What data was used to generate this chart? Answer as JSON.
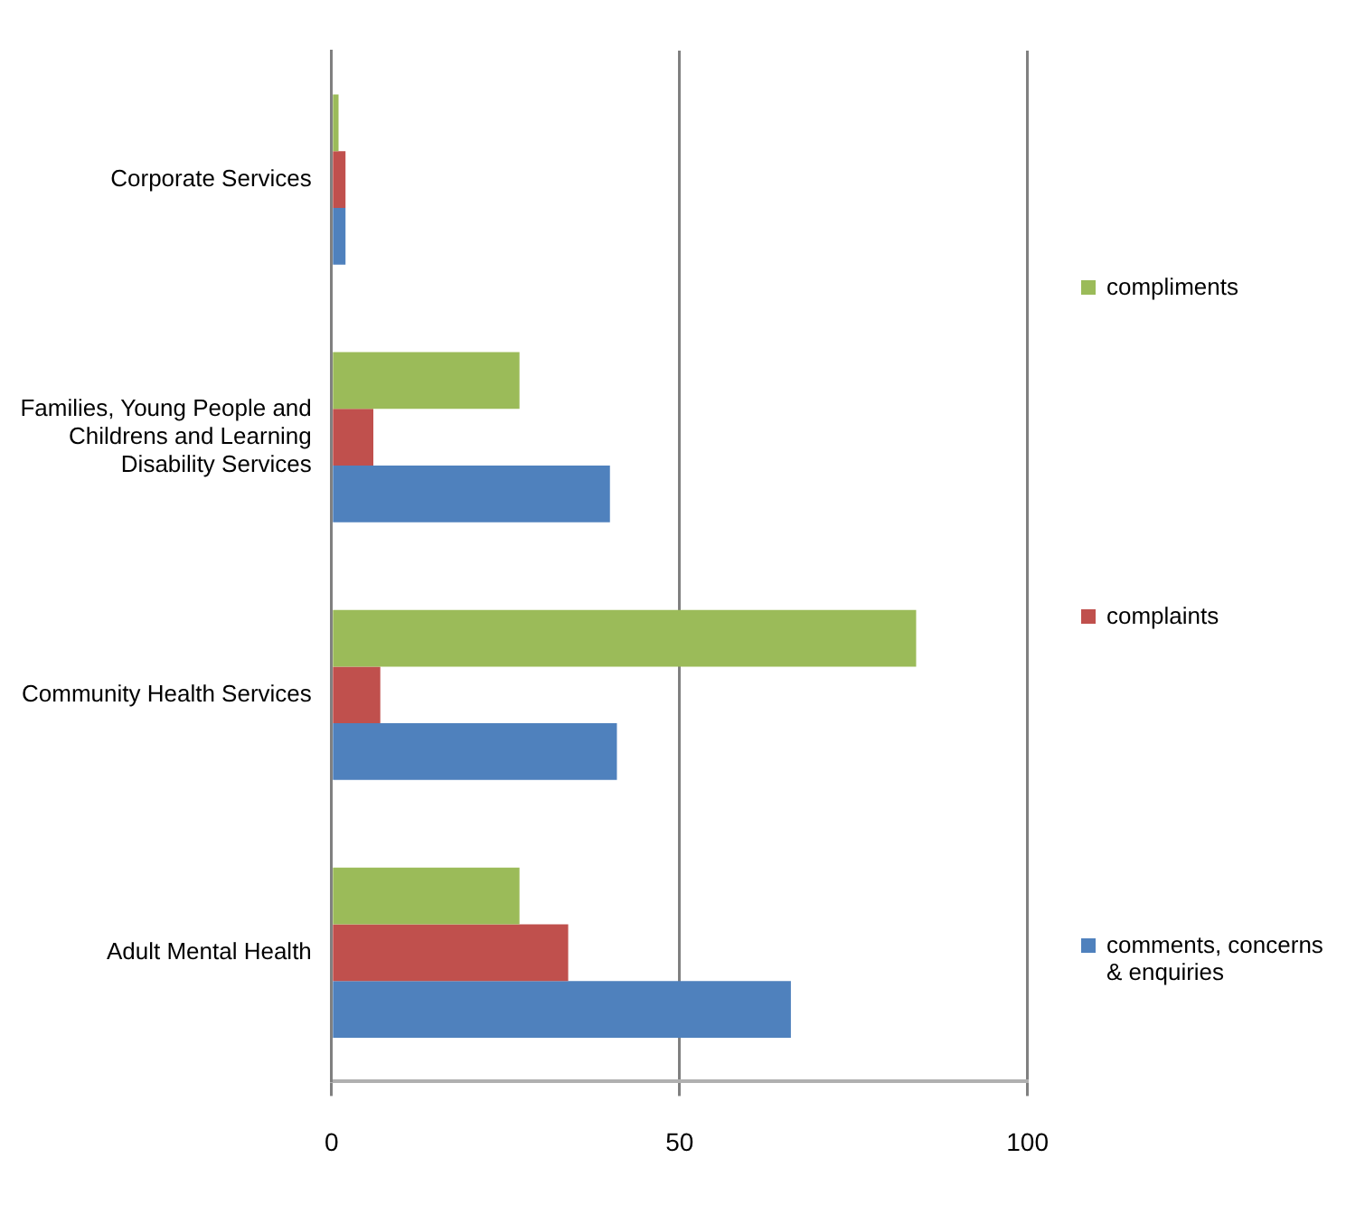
{
  "chart_data": {
    "type": "bar",
    "orientation": "horizontal",
    "categories": [
      "Corporate Services",
      "Families, Young People and Childrens and Learning Disability Services",
      "Community Health Services",
      "Adult Mental Health"
    ],
    "series": [
      {
        "name": "compliments",
        "color": "#9bbb59",
        "values": [
          1,
          27,
          84,
          27
        ]
      },
      {
        "name": "complaints",
        "color": "#c0504d",
        "values": [
          2,
          6,
          7,
          34
        ]
      },
      {
        "name": "comments, concerns & enquiries",
        "color": "#4f81bd",
        "values": [
          2,
          40,
          41,
          66
        ]
      }
    ],
    "xlim": [
      0,
      100
    ],
    "xticks": [
      0,
      50,
      100
    ],
    "grid": "x",
    "legend": "right"
  }
}
